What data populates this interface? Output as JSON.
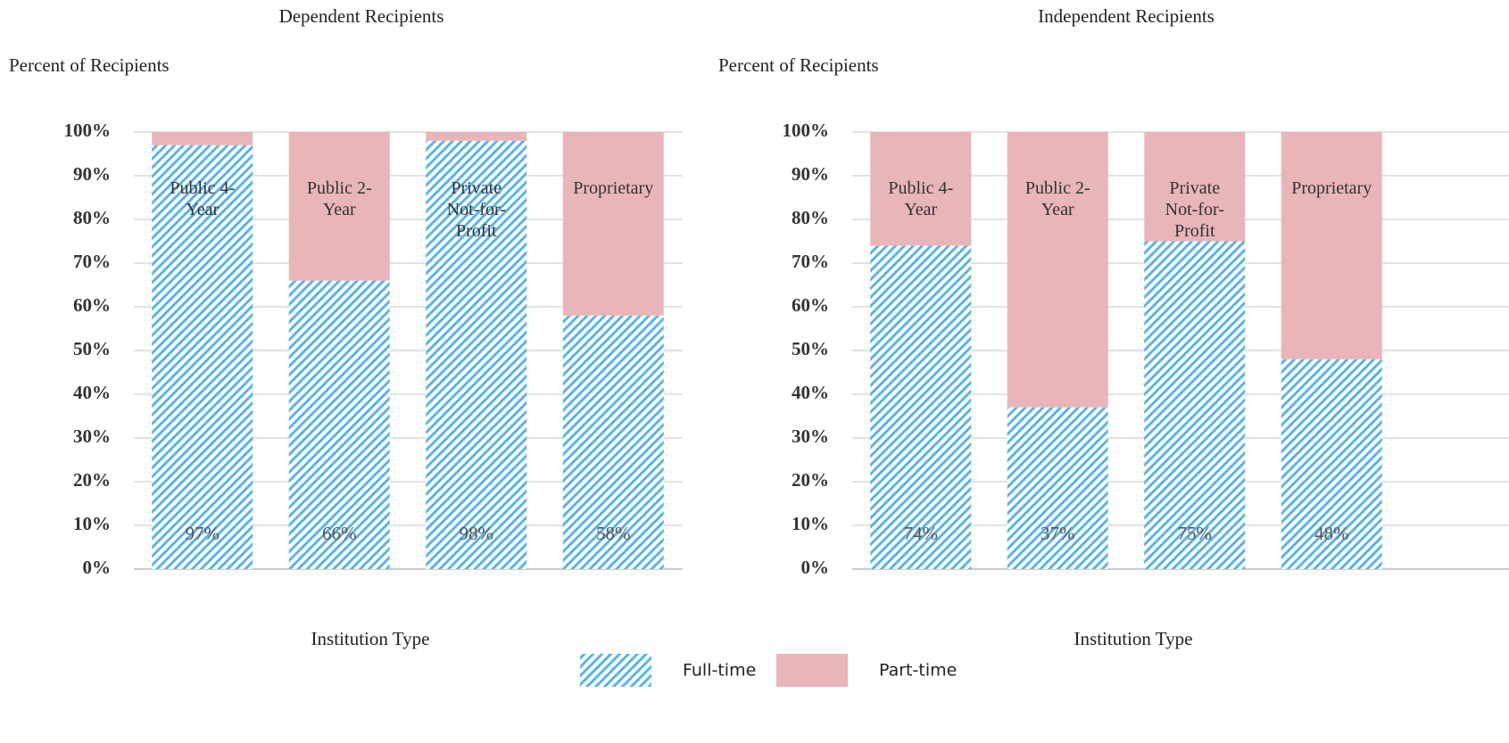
{
  "chart_data": [
    {
      "type": "bar",
      "stacked": true,
      "title": "Dependent Recipients",
      "ylabel": "Percent of Recipients",
      "xlabel": "Institution Type",
      "categories": [
        "Public 4-Year",
        "Public 2-Year",
        "Private Not-for-Profit",
        "Proprietary"
      ],
      "series": [
        {
          "name": "Full-time",
          "color": "#5ab4e5",
          "pattern": "hatch",
          "values": [
            97,
            66,
            98,
            58
          ],
          "value_labels": [
            "97%",
            "66%",
            "98%",
            "58%"
          ]
        },
        {
          "name": "Part-time",
          "color": "#e8b5b9",
          "values": [
            3,
            34,
            2,
            42
          ]
        }
      ],
      "ylim": [
        0,
        100
      ],
      "yticks": [
        {
          "value": 0,
          "label": "0%"
        },
        {
          "value": 10,
          "label": "10%"
        },
        {
          "value": 20,
          "label": "20%"
        },
        {
          "value": 30,
          "label": "30%"
        },
        {
          "value": 40,
          "label": "40%"
        },
        {
          "value": 50,
          "label": "50%"
        },
        {
          "value": 60,
          "label": "60%"
        },
        {
          "value": 70,
          "label": "70%"
        },
        {
          "value": 80,
          "label": "80%"
        },
        {
          "value": 90,
          "label": "90%"
        },
        {
          "value": 100,
          "label": "100%"
        }
      ],
      "grid": true
    },
    {
      "type": "bar",
      "stacked": true,
      "title": "Independent Recipients",
      "ylabel": "Percent of Recipients",
      "xlabel": "Institution Type",
      "categories": [
        "Public 4-Year",
        "Public 2-Year",
        "Private Not-for-Profit",
        "Proprietary"
      ],
      "series": [
        {
          "name": "Full-time",
          "color": "#5ab4e5",
          "pattern": "hatch",
          "values": [
            74,
            37,
            75,
            48
          ],
          "value_labels": [
            "74%",
            "37%",
            "75%",
            "48%"
          ]
        },
        {
          "name": "Part-time",
          "color": "#e8b5b9",
          "values": [
            26,
            63,
            25,
            52
          ]
        }
      ],
      "ylim": [
        0,
        100
      ],
      "yticks": [
        {
          "value": 0,
          "label": "0%"
        },
        {
          "value": 10,
          "label": "10%"
        },
        {
          "value": 20,
          "label": "20%"
        },
        {
          "value": 30,
          "label": "30%"
        },
        {
          "value": 40,
          "label": "40%"
        },
        {
          "value": 50,
          "label": "50%"
        },
        {
          "value": 60,
          "label": "60%"
        },
        {
          "value": 70,
          "label": "70%"
        },
        {
          "value": 80,
          "label": "80%"
        },
        {
          "value": 90,
          "label": "90%"
        },
        {
          "value": 100,
          "label": "100%"
        }
      ],
      "grid": true
    }
  ]
}
